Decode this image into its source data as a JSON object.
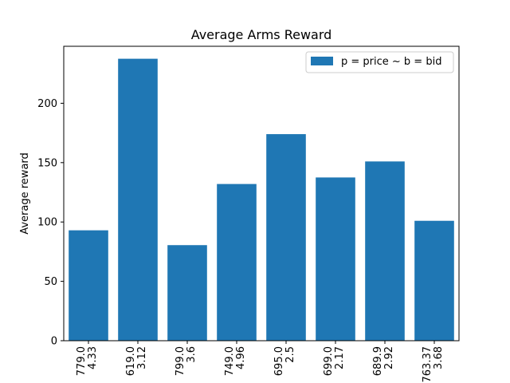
{
  "chart_data": {
    "type": "bar",
    "title": "Average Arms Reward",
    "xlabel": "",
    "ylabel": "Average reward",
    "categories": [
      [
        "779.0",
        "4.33"
      ],
      [
        "619.0",
        "3.12"
      ],
      [
        "799.0",
        "3.6"
      ],
      [
        "749.0",
        "4.96"
      ],
      [
        "695.0",
        "2.5"
      ],
      [
        "699.0",
        "2.17"
      ],
      [
        "689.9",
        "2.92"
      ],
      [
        "763.37",
        "3.68"
      ]
    ],
    "series": [
      {
        "name": "p = price ~ b = bid",
        "values": [
          93,
          237.5,
          80.5,
          132,
          174,
          137.5,
          151,
          101
        ]
      }
    ],
    "ylim": [
      0,
      248
    ],
    "yticks": [
      0,
      50,
      100,
      150,
      200
    ],
    "grid": false,
    "legend_position": "top-right",
    "bar_color": "#1f77b4"
  }
}
